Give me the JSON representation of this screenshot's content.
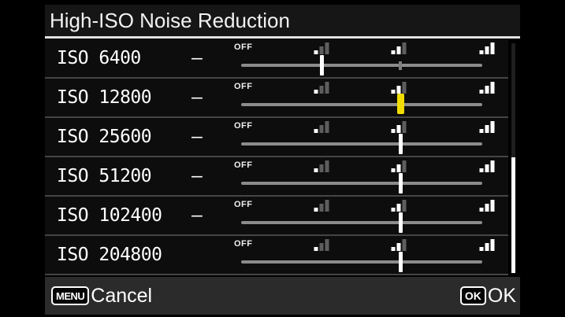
{
  "title": "High-ISO Noise Reduction",
  "slider_legend": {
    "off_label": "OFF",
    "levels": [
      "off",
      "low",
      "medium",
      "high"
    ]
  },
  "rows": [
    {
      "label": "ISO 6400",
      "dash": "–",
      "value": "low",
      "selected": false,
      "default_tick": "medium"
    },
    {
      "label": "ISO 12800",
      "dash": "–",
      "value": "medium",
      "selected": true,
      "default_tick": null
    },
    {
      "label": "ISO 25600",
      "dash": "–",
      "value": "medium",
      "selected": false,
      "default_tick": null
    },
    {
      "label": "ISO 51200",
      "dash": "–",
      "value": "medium",
      "selected": false,
      "default_tick": null
    },
    {
      "label": "ISO 102400",
      "dash": "–",
      "value": "medium",
      "selected": false,
      "default_tick": null
    },
    {
      "label": "ISO 204800",
      "dash": "",
      "value": "medium",
      "selected": false,
      "default_tick": null
    }
  ],
  "footer": {
    "menu_badge": "MENU",
    "cancel_label": "Cancel",
    "ok_badge": "OK",
    "ok_label": "OK"
  },
  "scrollbar": {
    "thumb_position": "bottom"
  },
  "colors": {
    "selected_marker": "#f0dc00",
    "marker": "#ffffff",
    "default_tick": "#7e7e7e",
    "track": "#8c8c8c",
    "icon_bright": "#ffffff",
    "icon_dim": "#5e5e5e",
    "footer_bg": "#2b2b2b"
  }
}
